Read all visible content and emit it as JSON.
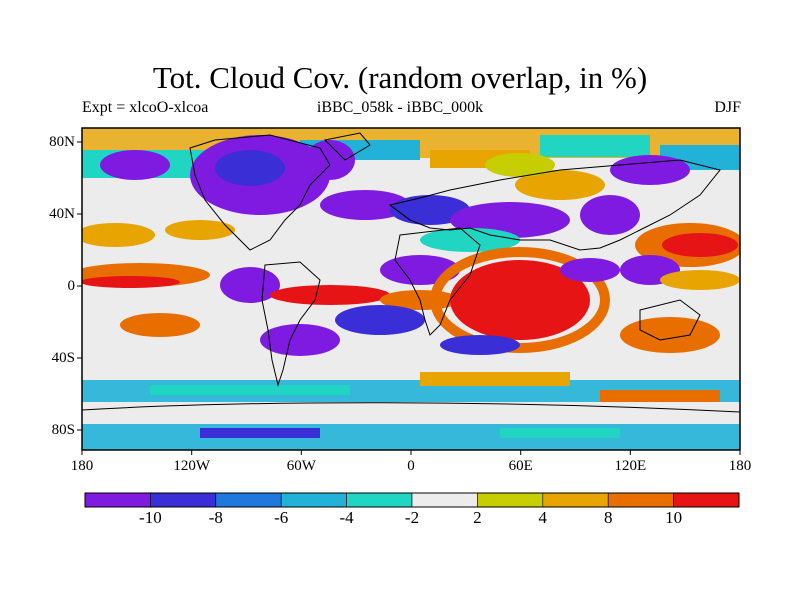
{
  "title": "Tot. Cloud Cov. (random overlap, in %)",
  "subtitle_left": "Expt = xlcoO-xlcoa",
  "subtitle_center": "iBBC_058k - iBBC_000k",
  "subtitle_right": "DJF",
  "lon_ticks": [
    "180",
    "120W",
    "60W",
    "0",
    "60E",
    "120E",
    "180"
  ],
  "lat_ticks": [
    "80N",
    "40N",
    "0",
    "40S",
    "80S"
  ],
  "colorbar": {
    "colors": [
      "#7f1be0",
      "#3a2fd6",
      "#1f78dc",
      "#22b2d8",
      "#20d6c2",
      "#ececec",
      "#c6cd00",
      "#e8a400",
      "#e86e00",
      "#e61414"
    ],
    "labels": [
      "-10",
      "-8",
      "-6",
      "-4",
      "-2",
      "2",
      "4",
      "8",
      "10"
    ]
  }
}
